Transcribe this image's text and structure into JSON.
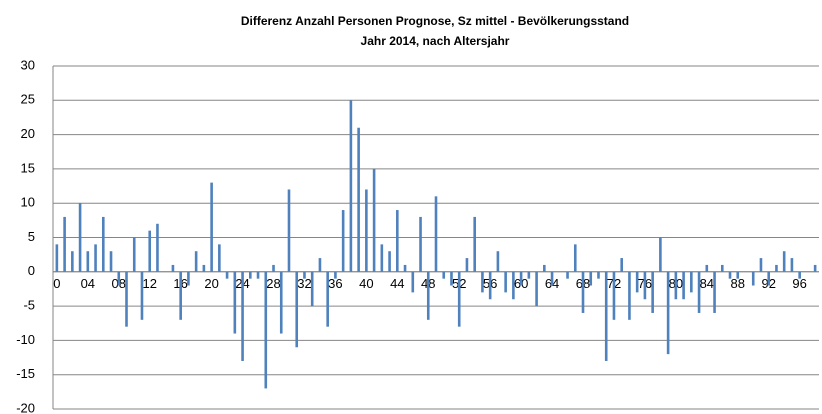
{
  "chart_data": {
    "type": "bar",
    "title": [
      "Differenz Anzahl Personen Prognose, Sz mittel  -  Bevölkerungsstand",
      "Jahr 2014, nach Altersjahr"
    ],
    "categories": [
      "0",
      null,
      null,
      null,
      "04",
      null,
      null,
      null,
      "08",
      null,
      null,
      null,
      "12",
      null,
      null,
      null,
      "16",
      null,
      null,
      null,
      "20",
      null,
      null,
      null,
      "24",
      null,
      null,
      null,
      "28",
      null,
      null,
      null,
      "32",
      null,
      null,
      null,
      "36",
      null,
      null,
      null,
      "40",
      null,
      null,
      null,
      "44",
      null,
      null,
      null,
      "48",
      null,
      null,
      null,
      "52",
      null,
      null,
      null,
      "56",
      null,
      null,
      null,
      "60",
      null,
      null,
      null,
      "64",
      null,
      null,
      null,
      "68",
      null,
      null,
      null,
      "72",
      null,
      null,
      null,
      "76",
      null,
      null,
      null,
      "80",
      null,
      null,
      null,
      "84",
      null,
      null,
      null,
      "88",
      null,
      null,
      null,
      "92",
      null,
      null,
      null,
      "96",
      null,
      null
    ],
    "values": [
      4,
      8,
      3,
      10,
      3,
      4,
      8,
      3,
      -2,
      -8,
      5,
      -7,
      6,
      7,
      0,
      1,
      -7,
      -2,
      3,
      1,
      13,
      4,
      -1,
      -9,
      -13,
      -1,
      -1,
      -17,
      1,
      -9,
      12,
      -11,
      -1,
      -5,
      2,
      -8,
      -1,
      9,
      25,
      21,
      12,
      15,
      4,
      3,
      9,
      1,
      -3,
      8,
      -7,
      11,
      -1,
      -2,
      -8,
      2,
      8,
      -3,
      -4,
      3,
      -3,
      -4,
      -2,
      -1,
      -5,
      1,
      -2,
      0,
      -1,
      4,
      -6,
      -2,
      -1,
      -13,
      -7,
      2,
      -7,
      -3,
      -4,
      -6,
      5,
      -12,
      -4,
      -4,
      -3,
      -6,
      1,
      -6,
      1,
      -1,
      -1,
      0,
      -2,
      2,
      -2,
      1,
      3,
      2,
      -1,
      0,
      1
    ],
    "color": "#4f81bd",
    "ylim": [
      -20,
      30
    ],
    "yticks": [
      -20,
      -15,
      -10,
      -5,
      0,
      5,
      10,
      15,
      20,
      25,
      30
    ],
    "grid": true
  }
}
